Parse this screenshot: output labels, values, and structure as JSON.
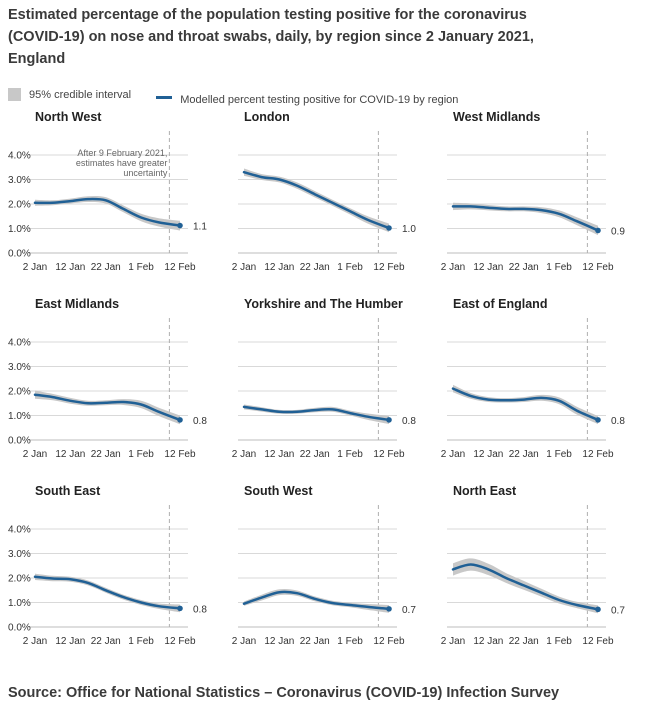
{
  "title": "Estimated percentage of the population testing positive for the coronavirus (COVID-19) on nose and throat swabs, daily, by region since 2 January 2021, England",
  "legend": {
    "interval_label": "95% credible interval",
    "line_label": "Modelled percent testing positive for COVID-19 by region"
  },
  "source": "Source: Office for National Statistics – Coronavirus (COVID-19) Infection Survey",
  "colors": {
    "line": "#206095",
    "band": "#c8c8c8",
    "grid": "#d9d9d9",
    "divider": "#b0b0b0"
  },
  "chart_data": [
    {
      "type": "line",
      "title": "North West",
      "end_label": "1.1",
      "annotation": "After 9 February 2021, estimates have greater uncertainty",
      "x": [
        "2021-01-02",
        "2021-01-07",
        "2021-01-12",
        "2021-01-17",
        "2021-01-22",
        "2021-01-27",
        "2021-02-01",
        "2021-02-06",
        "2021-02-12"
      ],
      "y": [
        2.05,
        2.05,
        2.12,
        2.2,
        2.15,
        1.8,
        1.45,
        1.25,
        1.12
      ],
      "lower": [
        1.93,
        1.95,
        2.02,
        2.08,
        2.02,
        1.66,
        1.3,
        1.08,
        0.92
      ],
      "upper": [
        2.17,
        2.15,
        2.22,
        2.32,
        2.28,
        1.94,
        1.6,
        1.42,
        1.32
      ],
      "xticks": [
        "2 Jan",
        "12 Jan",
        "22 Jan",
        "1 Feb",
        "12 Feb"
      ],
      "yticks": [
        "0.0%",
        "1.0%",
        "2.0%",
        "3.0%",
        "4.0%"
      ],
      "ylim": [
        0,
        4.5
      ]
    },
    {
      "type": "line",
      "title": "London",
      "end_label": "1.0",
      "x": [
        "2021-01-02",
        "2021-01-07",
        "2021-01-12",
        "2021-01-17",
        "2021-01-22",
        "2021-01-27",
        "2021-02-01",
        "2021-02-06",
        "2021-02-12"
      ],
      "y": [
        3.3,
        3.1,
        3.0,
        2.75,
        2.4,
        2.05,
        1.7,
        1.35,
        1.02
      ],
      "lower": [
        3.15,
        2.98,
        2.88,
        2.62,
        2.27,
        1.93,
        1.57,
        1.2,
        0.85
      ],
      "upper": [
        3.45,
        3.22,
        3.12,
        2.88,
        2.53,
        2.17,
        1.83,
        1.5,
        1.2
      ],
      "xticks": [
        "2 Jan",
        "12 Jan",
        "22 Jan",
        "1 Feb",
        "12 Feb"
      ],
      "yticks": [],
      "ylim": [
        0,
        4.5
      ]
    },
    {
      "type": "line",
      "title": "West Midlands",
      "end_label": "0.9",
      "x": [
        "2021-01-02",
        "2021-01-07",
        "2021-01-12",
        "2021-01-17",
        "2021-01-22",
        "2021-01-27",
        "2021-02-01",
        "2021-02-06",
        "2021-02-12"
      ],
      "y": [
        1.9,
        1.9,
        1.85,
        1.8,
        1.8,
        1.75,
        1.6,
        1.3,
        0.92
      ],
      "lower": [
        1.75,
        1.78,
        1.74,
        1.7,
        1.7,
        1.63,
        1.46,
        1.14,
        0.73
      ],
      "upper": [
        2.05,
        2.02,
        1.96,
        1.9,
        1.9,
        1.87,
        1.74,
        1.46,
        1.12
      ],
      "xticks": [
        "2 Jan",
        "12 Jan",
        "22 Jan",
        "1 Feb",
        "12 Feb"
      ],
      "yticks": [],
      "ylim": [
        0,
        4.5
      ]
    },
    {
      "type": "line",
      "title": "East Midlands",
      "end_label": "0.8",
      "x": [
        "2021-01-02",
        "2021-01-07",
        "2021-01-12",
        "2021-01-17",
        "2021-01-22",
        "2021-01-27",
        "2021-02-01",
        "2021-02-06",
        "2021-02-12"
      ],
      "y": [
        1.85,
        1.75,
        1.6,
        1.5,
        1.52,
        1.55,
        1.45,
        1.15,
        0.82
      ],
      "lower": [
        1.68,
        1.62,
        1.48,
        1.4,
        1.42,
        1.43,
        1.3,
        0.98,
        0.64
      ],
      "upper": [
        2.02,
        1.88,
        1.72,
        1.6,
        1.62,
        1.67,
        1.6,
        1.32,
        1.0
      ],
      "xticks": [
        "2 Jan",
        "12 Jan",
        "22 Jan",
        "1 Feb",
        "12 Feb"
      ],
      "yticks": [
        "0.0%",
        "1.0%",
        "2.0%",
        "3.0%",
        "4.0%"
      ],
      "ylim": [
        0,
        4.5
      ]
    },
    {
      "type": "line",
      "title": "Yorkshire and The Humber",
      "end_label": "0.8",
      "x": [
        "2021-01-02",
        "2021-01-07",
        "2021-01-12",
        "2021-01-17",
        "2021-01-22",
        "2021-01-27",
        "2021-02-01",
        "2021-02-06",
        "2021-02-12"
      ],
      "y": [
        1.35,
        1.25,
        1.15,
        1.15,
        1.22,
        1.25,
        1.1,
        0.95,
        0.82
      ],
      "lower": [
        1.25,
        1.16,
        1.07,
        1.07,
        1.13,
        1.15,
        1.0,
        0.82,
        0.65
      ],
      "upper": [
        1.45,
        1.34,
        1.23,
        1.23,
        1.31,
        1.35,
        1.2,
        1.08,
        0.98
      ],
      "xticks": [
        "2 Jan",
        "12 Jan",
        "22 Jan",
        "1 Feb",
        "12 Feb"
      ],
      "yticks": [],
      "ylim": [
        0,
        4.5
      ]
    },
    {
      "type": "line",
      "title": "East of England",
      "end_label": "0.8",
      "x": [
        "2021-01-02",
        "2021-01-07",
        "2021-01-12",
        "2021-01-17",
        "2021-01-22",
        "2021-01-27",
        "2021-02-01",
        "2021-02-06",
        "2021-02-12"
      ],
      "y": [
        2.1,
        1.8,
        1.65,
        1.62,
        1.65,
        1.72,
        1.6,
        1.2,
        0.82
      ],
      "lower": [
        1.95,
        1.68,
        1.55,
        1.53,
        1.55,
        1.6,
        1.46,
        1.04,
        0.65
      ],
      "upper": [
        2.25,
        1.92,
        1.75,
        1.71,
        1.75,
        1.84,
        1.74,
        1.36,
        0.98
      ],
      "xticks": [
        "2 Jan",
        "12 Jan",
        "22 Jan",
        "1 Feb",
        "12 Feb"
      ],
      "yticks": [],
      "ylim": [
        0,
        4.5
      ]
    },
    {
      "type": "line",
      "title": "South East",
      "end_label": "0.8",
      "x": [
        "2021-01-02",
        "2021-01-07",
        "2021-01-12",
        "2021-01-17",
        "2021-01-22",
        "2021-01-27",
        "2021-02-01",
        "2021-02-06",
        "2021-02-12"
      ],
      "y": [
        2.05,
        1.98,
        1.95,
        1.8,
        1.5,
        1.22,
        1.0,
        0.85,
        0.76
      ],
      "lower": [
        1.92,
        1.87,
        1.85,
        1.7,
        1.4,
        1.12,
        0.9,
        0.74,
        0.6
      ],
      "upper": [
        2.18,
        2.09,
        2.05,
        1.9,
        1.6,
        1.32,
        1.1,
        0.96,
        0.92
      ],
      "xticks": [
        "2 Jan",
        "12 Jan",
        "22 Jan",
        "1 Feb",
        "12 Feb"
      ],
      "yticks": [
        "0.0%",
        "1.0%",
        "2.0%",
        "3.0%",
        "4.0%"
      ],
      "ylim": [
        0,
        4.5
      ]
    },
    {
      "type": "line",
      "title": "South West",
      "end_label": "0.7",
      "x": [
        "2021-01-02",
        "2021-01-07",
        "2021-01-12",
        "2021-01-17",
        "2021-01-22",
        "2021-01-27",
        "2021-02-01",
        "2021-02-06",
        "2021-02-12"
      ],
      "y": [
        0.95,
        1.2,
        1.42,
        1.38,
        1.15,
        0.98,
        0.9,
        0.82,
        0.74
      ],
      "lower": [
        0.86,
        1.08,
        1.3,
        1.27,
        1.05,
        0.89,
        0.81,
        0.7,
        0.58
      ],
      "upper": [
        1.04,
        1.32,
        1.54,
        1.49,
        1.25,
        1.07,
        0.99,
        0.94,
        0.9
      ],
      "xticks": [
        "2 Jan",
        "12 Jan",
        "22 Jan",
        "1 Feb",
        "12 Feb"
      ],
      "yticks": [],
      "ylim": [
        0,
        4.5
      ]
    },
    {
      "type": "line",
      "title": "North East",
      "end_label": "0.7",
      "x": [
        "2021-01-02",
        "2021-01-07",
        "2021-01-12",
        "2021-01-17",
        "2021-01-22",
        "2021-01-27",
        "2021-02-01",
        "2021-02-06",
        "2021-02-12"
      ],
      "y": [
        2.35,
        2.55,
        2.35,
        2.0,
        1.7,
        1.4,
        1.1,
        0.9,
        0.72
      ],
      "lower": [
        2.1,
        2.3,
        2.12,
        1.8,
        1.52,
        1.24,
        0.96,
        0.77,
        0.56
      ],
      "upper": [
        2.6,
        2.8,
        2.58,
        2.2,
        1.88,
        1.56,
        1.24,
        1.03,
        0.88
      ],
      "xticks": [
        "2 Jan",
        "12 Jan",
        "22 Jan",
        "1 Feb",
        "12 Feb"
      ],
      "yticks": [],
      "ylim": [
        0,
        4.5
      ]
    }
  ]
}
